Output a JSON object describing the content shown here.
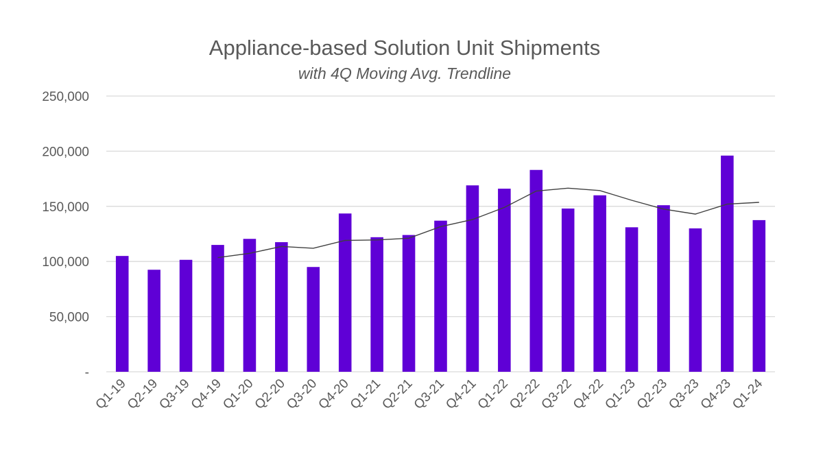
{
  "chart_data": {
    "type": "bar",
    "title": "Appliance-based Solution Unit Shipments",
    "subtitle": "with 4Q Moving Avg. Trendline",
    "categories": [
      "Q1-19",
      "Q2-19",
      "Q3-19",
      "Q4-19",
      "Q1-20",
      "Q2-20",
      "Q3-20",
      "Q4-20",
      "Q1-21",
      "Q2-21",
      "Q3-21",
      "Q4-21",
      "Q1-22",
      "Q2-22",
      "Q3-22",
      "Q4-22",
      "Q1-23",
      "Q2-23",
      "Q3-23",
      "Q4-23",
      "Q1-24"
    ],
    "series": [
      {
        "type": "bar",
        "values": [
          105000,
          92500,
          101500,
          115000,
          120500,
          117500,
          95000,
          143500,
          122000,
          124000,
          137000,
          169000,
          166000,
          183000,
          148000,
          160000,
          131000,
          151000,
          130000,
          196000,
          137500
        ]
      },
      {
        "type": "line",
        "values": [
          null,
          null,
          null,
          103500,
          107400,
          113600,
          112000,
          119100,
          119500,
          121100,
          131600,
          138000,
          149000,
          163800,
          166500,
          164300,
          155500,
          147500,
          143000,
          152000,
          153600
        ]
      }
    ],
    "ylim": [
      0,
      250000
    ],
    "yticks": [
      0,
      50000,
      100000,
      150000,
      200000,
      250000
    ],
    "ytick_labels": [
      "-",
      "50,000",
      "100,000",
      "150,000",
      "200,000",
      "250,000"
    ],
    "grid": true,
    "legend": "none",
    "colors": {
      "bar": "#5f00d6",
      "line": "#404040",
      "grid": "#d9d9d9",
      "text": "#595959"
    }
  }
}
